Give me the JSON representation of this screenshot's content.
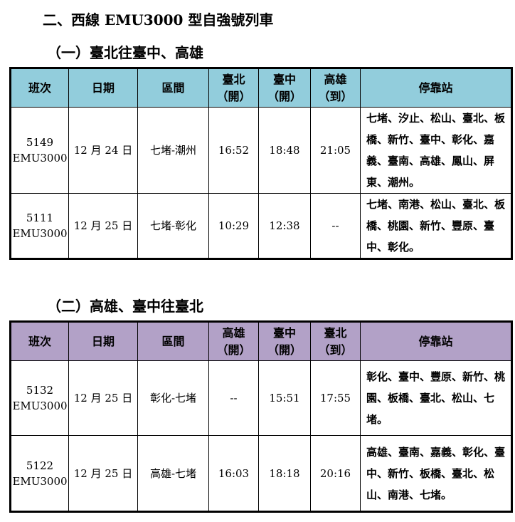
{
  "heading": "二、西線 EMU3000 型自強號列車",
  "headers1": [
    "班次",
    "日期",
    "區間",
    "臺北\n（開）",
    "臺中\n（開）",
    "高雄\n（到）",
    "停靠站"
  ],
  "headers2": [
    "班次",
    "日期",
    "區間",
    "高雄\n（開）",
    "臺中\n（開）",
    "臺北\n（到）",
    "停靠站"
  ],
  "section1": {
    "title": "（一）臺北往臺中、高雄",
    "rows": [
      {
        "train": "5149",
        "type": "EMU3000",
        "date": "12 月 24 日",
        "route": "七堵-潮州",
        "t1": "16:52",
        "t2": "18:48",
        "t3": "21:05",
        "stops": "七堵、汐止、松山、臺北、板橋、新竹、臺中、彰化、嘉義、臺南、高雄、鳳山、屏東、潮州。"
      },
      {
        "train": "5111",
        "type": "EMU3000",
        "date": "12 月 25 日",
        "route": "七堵-彰化",
        "t1": "10:29",
        "t2": "12:38",
        "t3": "--",
        "stops": "七堵、南港、松山、臺北、板橋、桃園、新竹、豐原、臺中、彰化。"
      }
    ]
  },
  "section2": {
    "title": "（二）高雄、臺中往臺北",
    "rows": [
      {
        "train": "5132",
        "type": "EMU3000",
        "date": "12 月 25 日",
        "route": "彰化-七堵",
        "t1": "--",
        "t2": "15:51",
        "t3": "17:55",
        "stops": "彰化、臺中、豐原、新竹、桃園、板橋、臺北、松山、七堵。"
      },
      {
        "train": "5122",
        "type": "EMU3000",
        "date": "12 月 25 日",
        "route": "高雄-七堵",
        "t1": "16:03",
        "t2": "18:18",
        "t3": "20:16",
        "stops": "高雄、臺南、嘉義、彰化、臺中、新竹、板橋、臺北、松山、南港、七堵。"
      }
    ]
  },
  "colors": {
    "header1": "#92CDDC",
    "header2": "#B2A1C7"
  }
}
